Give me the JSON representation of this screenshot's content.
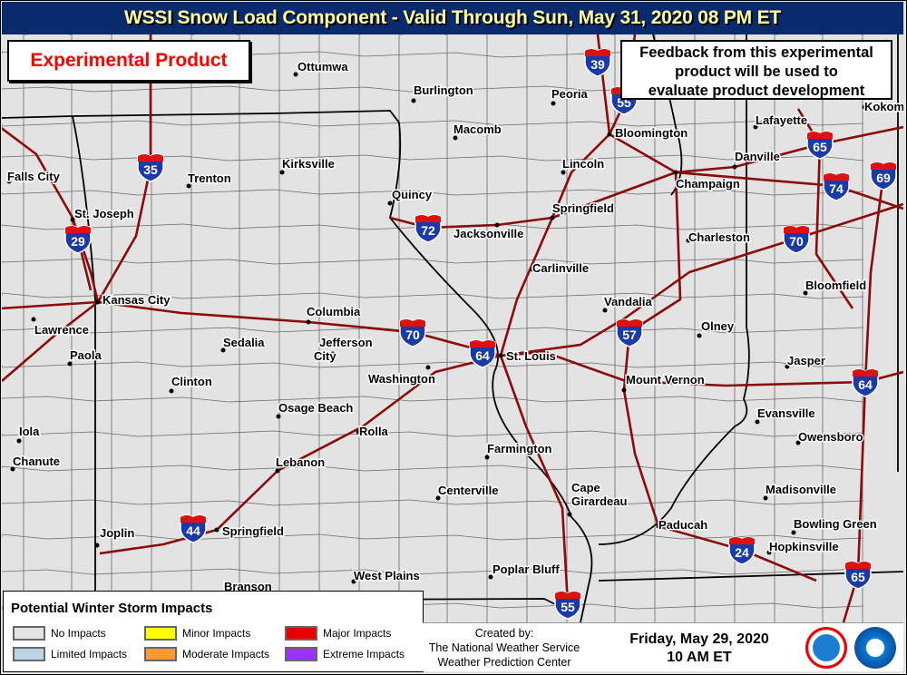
{
  "header": {
    "title": "WSSI Snow Load Component - Valid Through Sun, May 31, 2020 08 PM ET"
  },
  "experimental_label": "Experimental Product",
  "feedback_note": [
    "Feedback from this experimental",
    "product will be used to",
    "evaluate product development"
  ],
  "cities": [
    "Ottumwa",
    "Burlington",
    "Peoria",
    "Macomb",
    "Bloomington",
    "Lafayette",
    "Kokomo",
    "Falls City",
    "Trenton",
    "Kirksville",
    "Lincoln",
    "Danville",
    "Champaign",
    "Quincy",
    "St. Joseph",
    "Springfield",
    "Jacksonville",
    "Charleston",
    "Carlinville",
    "Bloomfield",
    "Kansas City",
    "Lawrence",
    "Columbia",
    "Vandalia",
    "Paola",
    "Sedalia",
    "Jefferson City",
    "St. Louis",
    "Olney",
    "Jasper",
    "Clinton",
    "Washington",
    "Mount Vernon",
    "Osage Beach",
    "Evansville",
    "Rolla",
    "Owensboro",
    "Iola",
    "Farmington",
    "Chanute",
    "Lebanon",
    "Centerville",
    "Cape Girardeau",
    "Madisonville",
    "Paducah",
    "Bowling Green",
    "Joplin",
    "Springfield",
    "Hopkinsville",
    "Poplar Bluff",
    "West Plains",
    "Branson"
  ],
  "interstates": [
    "39",
    "35",
    "72",
    "29",
    "65",
    "74",
    "69",
    "70",
    "70",
    "64",
    "57",
    "64",
    "44",
    "24",
    "65",
    "55",
    "55"
  ],
  "legend": {
    "title": "Potential Winter Storm Impacts",
    "items": [
      {
        "label": "No Impacts",
        "color": "#e3e3e3"
      },
      {
        "label": "Limited Impacts",
        "color": "#bcd5e6"
      },
      {
        "label": "Minor Impacts",
        "color": "#ffff00"
      },
      {
        "label": "Moderate Impacts",
        "color": "#ff9933"
      },
      {
        "label": "Major Impacts",
        "color": "#e60000"
      },
      {
        "label": "Extreme Impacts",
        "color": "#9933ff"
      }
    ]
  },
  "credit": {
    "line1": "Created by:",
    "line2": "The National Weather Service",
    "line3": "Weather Prediction Center"
  },
  "issued": {
    "date": "Friday, May 29, 2020",
    "time": "10 AM ET"
  },
  "colors": {
    "header_bg": "#0a2a6e",
    "header_text": "#ffff99",
    "road": "#8b0a0a",
    "map_bg": "#e3e3e3"
  },
  "logos": [
    "nws-logo",
    "noaa-logo"
  ]
}
